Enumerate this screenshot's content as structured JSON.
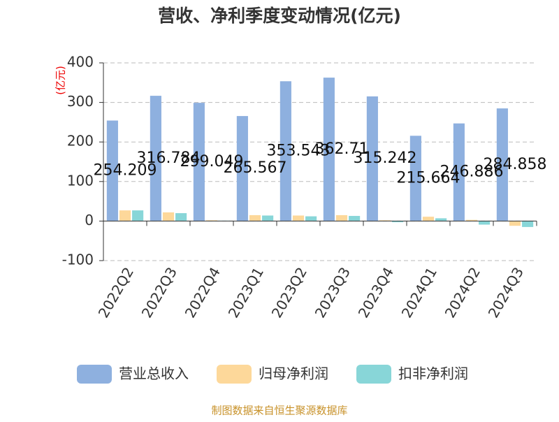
{
  "chart_data": {
    "type": "bar",
    "title": "营收、净利季度变动情况(亿元)",
    "y_label": "(亿元)",
    "source": "制图数据来自恒生聚源数据库",
    "categories": [
      "2022Q2",
      "2022Q3",
      "2022Q4",
      "2023Q1",
      "2023Q2",
      "2023Q3",
      "2023Q4",
      "2024Q1",
      "2024Q2",
      "2024Q3"
    ],
    "series": [
      {
        "name": "营业总收入",
        "color": "#8eb0df",
        "values": [
          254.209,
          316.784,
          299.049,
          265.567,
          353.543,
          362.71,
          315.242,
          215.664,
          246.886,
          284.858
        ],
        "show_labels": true
      },
      {
        "name": "归母净利润",
        "color": "#fdd89a",
        "values": [
          27,
          22,
          2,
          15,
          14,
          15,
          2,
          11,
          3,
          -12
        ]
      },
      {
        "name": "扣非净利润",
        "color": "#88d6d8",
        "values": [
          27,
          20,
          1,
          14,
          12,
          13,
          -3,
          7,
          -9,
          -15
        ]
      }
    ],
    "ylim": [
      -100,
      400
    ],
    "yticks": [
      -100,
      0,
      100,
      200,
      300,
      400
    ],
    "grid": true
  }
}
